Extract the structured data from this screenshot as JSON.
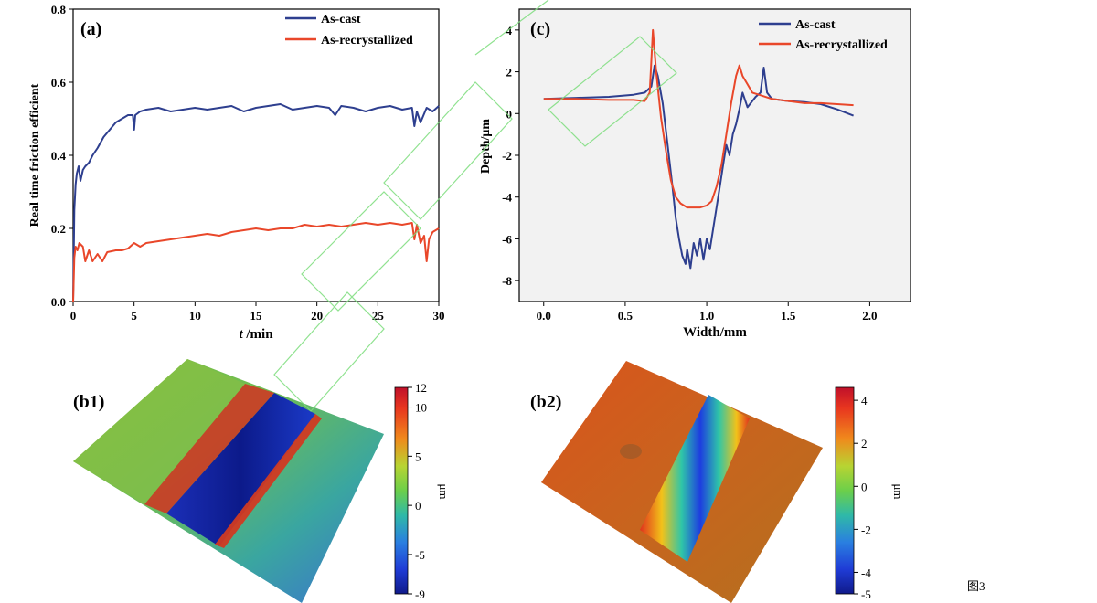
{
  "figure_label": "图3",
  "colors": {
    "as_cast": "#2e3f8f",
    "as_recrystallized": "#e9472a",
    "axis": "#000000",
    "frame_bg": "#f2f2f2",
    "watermark": "#7ddd7d"
  },
  "chart_data": [
    {
      "id": "a",
      "panel_label": "(a)",
      "type": "line",
      "title": "",
      "xlabel_italic": "t",
      "xlabel_rest": " /min",
      "ylabel": "Real time friction efficient",
      "xlim": [
        0,
        30
      ],
      "ylim": [
        0,
        0.8
      ],
      "xticks": [
        0,
        5,
        10,
        15,
        20,
        25,
        30
      ],
      "yticks": [
        0.0,
        0.2,
        0.4,
        0.6,
        0.8
      ],
      "xtick_labels": [
        "0",
        "5",
        "10",
        "15",
        "20",
        "25",
        "30"
      ],
      "ytick_labels": [
        "0.0",
        "0.2",
        "0.4",
        "0.6",
        "0.8"
      ],
      "legend_position": "top-right",
      "series": [
        {
          "name": "As-cast",
          "color_key": "as_cast",
          "x": [
            0,
            0.1,
            0.2,
            0.3,
            0.45,
            0.6,
            0.8,
            1.0,
            1.3,
            1.6,
            2.0,
            2.5,
            3.0,
            3.5,
            4.0,
            4.5,
            4.9,
            5.0,
            5.1,
            5.5,
            6,
            7,
            8,
            9,
            10,
            11,
            12,
            13,
            14,
            15,
            16,
            17,
            18,
            19,
            20,
            21,
            21.5,
            22,
            23,
            24,
            25,
            26,
            27,
            27.8,
            28.0,
            28.2,
            28.5,
            29,
            29.5,
            30
          ],
          "y": [
            0.0,
            0.25,
            0.32,
            0.35,
            0.37,
            0.33,
            0.36,
            0.37,
            0.38,
            0.4,
            0.42,
            0.45,
            0.47,
            0.49,
            0.5,
            0.51,
            0.51,
            0.47,
            0.51,
            0.52,
            0.525,
            0.53,
            0.52,
            0.525,
            0.53,
            0.525,
            0.53,
            0.535,
            0.52,
            0.53,
            0.535,
            0.54,
            0.525,
            0.53,
            0.535,
            0.53,
            0.51,
            0.535,
            0.53,
            0.52,
            0.53,
            0.535,
            0.525,
            0.53,
            0.48,
            0.52,
            0.49,
            0.53,
            0.52,
            0.535
          ]
        },
        {
          "name": "As-recrystallized",
          "color_key": "as_recrystallized",
          "x": [
            0,
            0.1,
            0.2,
            0.35,
            0.5,
            0.8,
            1.0,
            1.3,
            1.6,
            2.0,
            2.4,
            2.8,
            3.5,
            4.0,
            4.5,
            5.0,
            5.5,
            6,
            7,
            8,
            9,
            10,
            11,
            12,
            13,
            14,
            15,
            16,
            17,
            18,
            19,
            20,
            21,
            22,
            23,
            24,
            25,
            26,
            27,
            27.8,
            28.0,
            28.2,
            28.5,
            28.8,
            29.0,
            29.2,
            29.5,
            30
          ],
          "y": [
            0.0,
            0.12,
            0.15,
            0.14,
            0.16,
            0.15,
            0.11,
            0.14,
            0.11,
            0.13,
            0.11,
            0.135,
            0.14,
            0.14,
            0.145,
            0.16,
            0.15,
            0.16,
            0.165,
            0.17,
            0.175,
            0.18,
            0.185,
            0.18,
            0.19,
            0.195,
            0.2,
            0.195,
            0.2,
            0.2,
            0.21,
            0.205,
            0.21,
            0.205,
            0.21,
            0.215,
            0.21,
            0.215,
            0.21,
            0.215,
            0.17,
            0.21,
            0.16,
            0.18,
            0.11,
            0.17,
            0.19,
            0.2
          ]
        }
      ]
    },
    {
      "id": "c",
      "panel_label": "(c)",
      "type": "line",
      "title": "",
      "xlabel": "Width/mm",
      "ylabel": "Depth/μm",
      "xlim": [
        -0.15,
        2.25
      ],
      "ylim": [
        -9,
        5
      ],
      "xticks": [
        0.0,
        0.5,
        1.0,
        1.5,
        2.0
      ],
      "yticks": [
        -8,
        -6,
        -4,
        -2,
        0,
        2,
        4
      ],
      "xtick_labels": [
        "0.0",
        "0.5",
        "1.0",
        "1.5",
        "2.0"
      ],
      "ytick_labels": [
        "-8",
        "-6",
        "-4",
        "-2",
        "0",
        "2",
        "4"
      ],
      "legend_position": "top-right",
      "series": [
        {
          "name": "As-cast",
          "color_key": "as_cast",
          "x": [
            0.0,
            0.2,
            0.4,
            0.55,
            0.62,
            0.66,
            0.68,
            0.7,
            0.73,
            0.76,
            0.79,
            0.81,
            0.83,
            0.85,
            0.87,
            0.88,
            0.9,
            0.92,
            0.94,
            0.96,
            0.98,
            1.0,
            1.02,
            1.04,
            1.06,
            1.08,
            1.1,
            1.12,
            1.14,
            1.16,
            1.18,
            1.2,
            1.22,
            1.25,
            1.3,
            1.33,
            1.35,
            1.37,
            1.4,
            1.5,
            1.6,
            1.7,
            1.8,
            1.9
          ],
          "y": [
            0.7,
            0.75,
            0.8,
            0.9,
            1.0,
            1.3,
            2.3,
            1.8,
            0.5,
            -1.5,
            -3.5,
            -5.0,
            -6.0,
            -6.8,
            -7.2,
            -6.5,
            -7.4,
            -6.2,
            -6.8,
            -6.0,
            -7.0,
            -6.0,
            -6.5,
            -5.5,
            -4.5,
            -3.5,
            -2.5,
            -1.5,
            -2.0,
            -1.0,
            -0.5,
            0.2,
            1.0,
            0.3,
            0.8,
            1.0,
            2.2,
            1.0,
            0.7,
            0.6,
            0.55,
            0.45,
            0.2,
            -0.1
          ]
        },
        {
          "name": "As-recrystallized",
          "color_key": "as_recrystallized",
          "x": [
            0.0,
            0.2,
            0.4,
            0.55,
            0.62,
            0.65,
            0.67,
            0.69,
            0.72,
            0.75,
            0.78,
            0.81,
            0.84,
            0.88,
            0.92,
            0.96,
            1.0,
            1.03,
            1.06,
            1.09,
            1.12,
            1.15,
            1.18,
            1.2,
            1.22,
            1.25,
            1.28,
            1.32,
            1.4,
            1.5,
            1.6,
            1.7,
            1.8,
            1.9
          ],
          "y": [
            0.7,
            0.7,
            0.65,
            0.65,
            0.6,
            1.0,
            4.0,
            2.0,
            -0.2,
            -1.8,
            -3.2,
            -4.0,
            -4.3,
            -4.5,
            -4.5,
            -4.5,
            -4.4,
            -4.2,
            -3.5,
            -2.5,
            -1.0,
            0.5,
            1.8,
            2.3,
            1.8,
            1.4,
            1.0,
            0.9,
            0.7,
            0.6,
            0.5,
            0.5,
            0.45,
            0.4
          ]
        }
      ]
    }
  ],
  "surface_panels": [
    {
      "id": "b1",
      "panel_label": "(b1)",
      "unit": "μm",
      "colorbar_ticks": [
        "12",
        "10",
        "5",
        "0",
        "-5",
        "-9"
      ],
      "colorbar_range": [
        -9,
        12
      ],
      "colorbar_values": [
        12,
        10,
        5,
        0,
        -5,
        -9
      ]
    },
    {
      "id": "b2",
      "panel_label": "(b2)",
      "unit": "μm",
      "colorbar_ticks": [
        "4",
        "2",
        "0",
        "-2",
        "-4",
        "-5"
      ],
      "colorbar_range": [
        -5,
        4.6
      ],
      "colorbar_values": [
        4,
        2,
        0,
        -2,
        -4,
        -5
      ]
    }
  ]
}
